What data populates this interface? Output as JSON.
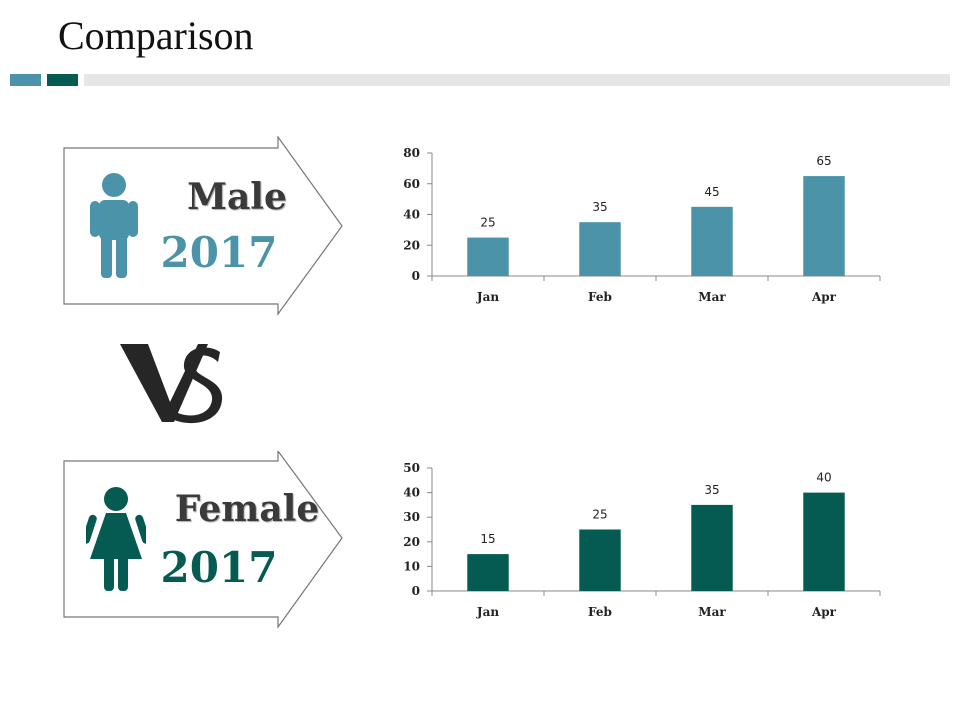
{
  "page": {
    "title": "Comparison"
  },
  "colors": {
    "male": "#4a93a8",
    "female": "#055a52",
    "accent_light": "#e6e6e6"
  },
  "male": {
    "label": "Male",
    "year": "2017",
    "icon": "male-person-icon"
  },
  "female": {
    "label": "Female",
    "year": "2017",
    "icon": "female-person-icon"
  },
  "vs_text": "VS",
  "chart_data": [
    {
      "type": "bar",
      "title": "",
      "categories": [
        "Jan",
        "Feb",
        "Mar",
        "Apr"
      ],
      "values": [
        25,
        35,
        45,
        65
      ],
      "ylim": [
        0,
        80
      ],
      "yticks": [
        0,
        20,
        40,
        60,
        80
      ],
      "xlabel": "",
      "ylabel": "",
      "color": "#4a93a8",
      "grid": false
    },
    {
      "type": "bar",
      "title": "",
      "categories": [
        "Jan",
        "Feb",
        "Mar",
        "Apr"
      ],
      "values": [
        15,
        25,
        35,
        40
      ],
      "ylim": [
        0,
        50
      ],
      "yticks": [
        0,
        10,
        20,
        30,
        40,
        50
      ],
      "xlabel": "",
      "ylabel": "",
      "color": "#055a52",
      "grid": false
    }
  ]
}
